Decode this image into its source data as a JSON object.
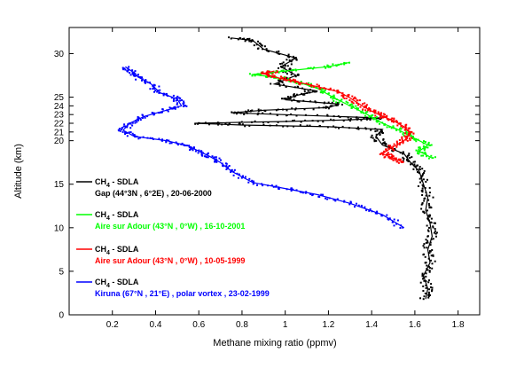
{
  "chart_data": {
    "type": "line",
    "title": "",
    "xlabel": "Methane mixing ratio (ppmv)",
    "ylabel": "Altitude (km)",
    "xlim": [
      0,
      1.9
    ],
    "ylim": [
      0,
      33
    ],
    "x_ticks": [
      "0.2",
      "0.4",
      "0.6",
      "0.8",
      "1",
      "1.2",
      "1.4",
      "1.6",
      "1.8"
    ],
    "y_ticks": [
      "0",
      "5",
      "10",
      "15",
      "20",
      "21",
      "22",
      "23",
      "24",
      "25",
      "30"
    ],
    "grid": false,
    "legend_position": "left-middle",
    "series": [
      {
        "species": "CH",
        "subscript": "4",
        "instrument": " - SDLA",
        "detail": "Gap (44°3N , 6°2E) ,  20-06-2000",
        "color": "#000000",
        "points": [
          [
            1.65,
            1.8
          ],
          [
            1.66,
            3
          ],
          [
            1.64,
            4.5
          ],
          [
            1.67,
            6
          ],
          [
            1.66,
            7.5
          ],
          [
            1.68,
            9
          ],
          [
            1.67,
            10.5
          ],
          [
            1.65,
            12
          ],
          [
            1.66,
            13.5
          ],
          [
            1.64,
            15
          ],
          [
            1.62,
            16.5
          ],
          [
            1.58,
            17.5
          ],
          [
            1.55,
            18.5
          ],
          [
            1.45,
            19.5
          ],
          [
            1.42,
            20.5
          ],
          [
            1.45,
            21.3
          ],
          [
            1.2,
            21.6
          ],
          [
            0.8,
            21.8
          ],
          [
            0.58,
            22
          ],
          [
            1.0,
            22.2
          ],
          [
            1.3,
            22.4
          ],
          [
            1.45,
            22.6
          ],
          [
            1.1,
            22.9
          ],
          [
            0.75,
            23.2
          ],
          [
            0.9,
            23.5
          ],
          [
            1.2,
            23.8
          ],
          [
            1.25,
            24.2
          ],
          [
            1.0,
            24.7
          ],
          [
            1.05,
            25.2
          ],
          [
            1.15,
            25.7
          ],
          [
            0.95,
            26.5
          ],
          [
            1.05,
            27.5
          ],
          [
            0.98,
            28.5
          ],
          [
            1.05,
            29.5
          ],
          [
            0.9,
            30.5
          ],
          [
            0.85,
            31.5
          ],
          [
            0.75,
            31.8
          ]
        ]
      },
      {
        "species": "CH",
        "subscript": "4",
        "instrument": " - SDLA",
        "detail": "Aire sur Adour (43°N , 0°W) ,  16-10-2001",
        "color": "#00ff00",
        "points": [
          [
            1.68,
            18
          ],
          [
            1.62,
            18.8
          ],
          [
            1.66,
            19.5
          ],
          [
            1.58,
            20.5
          ],
          [
            1.52,
            21.3
          ],
          [
            1.45,
            22
          ],
          [
            1.38,
            23
          ],
          [
            1.3,
            24
          ],
          [
            1.22,
            25
          ],
          [
            1.15,
            26
          ],
          [
            1.05,
            26.8
          ],
          [
            0.95,
            27.3
          ],
          [
            0.85,
            27.6
          ],
          [
            1.0,
            28
          ],
          [
            1.2,
            28.5
          ],
          [
            1.3,
            29
          ]
        ]
      },
      {
        "species": "CH",
        "subscript": "4",
        "instrument": " - SDLA",
        "detail": "Aire sur Adour (43°N , 0°W) ,  10-05-1999",
        "color": "#ff0000",
        "points": [
          [
            1.55,
            17.5
          ],
          [
            1.5,
            18
          ],
          [
            1.45,
            18.5
          ],
          [
            1.5,
            19.3
          ],
          [
            1.55,
            20
          ],
          [
            1.58,
            20.8
          ],
          [
            1.55,
            21.6
          ],
          [
            1.5,
            22.3
          ],
          [
            1.45,
            22.8
          ],
          [
            1.4,
            23.4
          ],
          [
            1.35,
            24.1
          ],
          [
            1.3,
            24.9
          ],
          [
            1.25,
            25.6
          ],
          [
            1.15,
            26.2
          ],
          [
            1.05,
            26.8
          ],
          [
            0.95,
            27.3
          ],
          [
            0.9,
            27.7
          ],
          [
            0.95,
            28
          ]
        ]
      },
      {
        "species": "CH",
        "subscript": "4",
        "instrument": " - SDLA",
        "detail": "Kiruna (67°N , 21°E) , polar vortex ,  23-02-1999",
        "color": "#0000ff",
        "points": [
          [
            1.55,
            10
          ],
          [
            1.45,
            11.5
          ],
          [
            1.3,
            12.8
          ],
          [
            1.15,
            13.8
          ],
          [
            1.0,
            14.5
          ],
          [
            0.85,
            15.2
          ],
          [
            0.75,
            16.5
          ],
          [
            0.7,
            17.5
          ],
          [
            0.65,
            18.2
          ],
          [
            0.6,
            18.8
          ],
          [
            0.55,
            19.4
          ],
          [
            0.45,
            20
          ],
          [
            0.3,
            20.5
          ],
          [
            0.25,
            21.2
          ],
          [
            0.28,
            22
          ],
          [
            0.35,
            22.8
          ],
          [
            0.45,
            23.5
          ],
          [
            0.52,
            24
          ],
          [
            0.5,
            24.8
          ],
          [
            0.42,
            25.5
          ],
          [
            0.38,
            26.5
          ],
          [
            0.32,
            27.3
          ],
          [
            0.3,
            27.8
          ],
          [
            0.26,
            28.5
          ]
        ]
      }
    ]
  }
}
